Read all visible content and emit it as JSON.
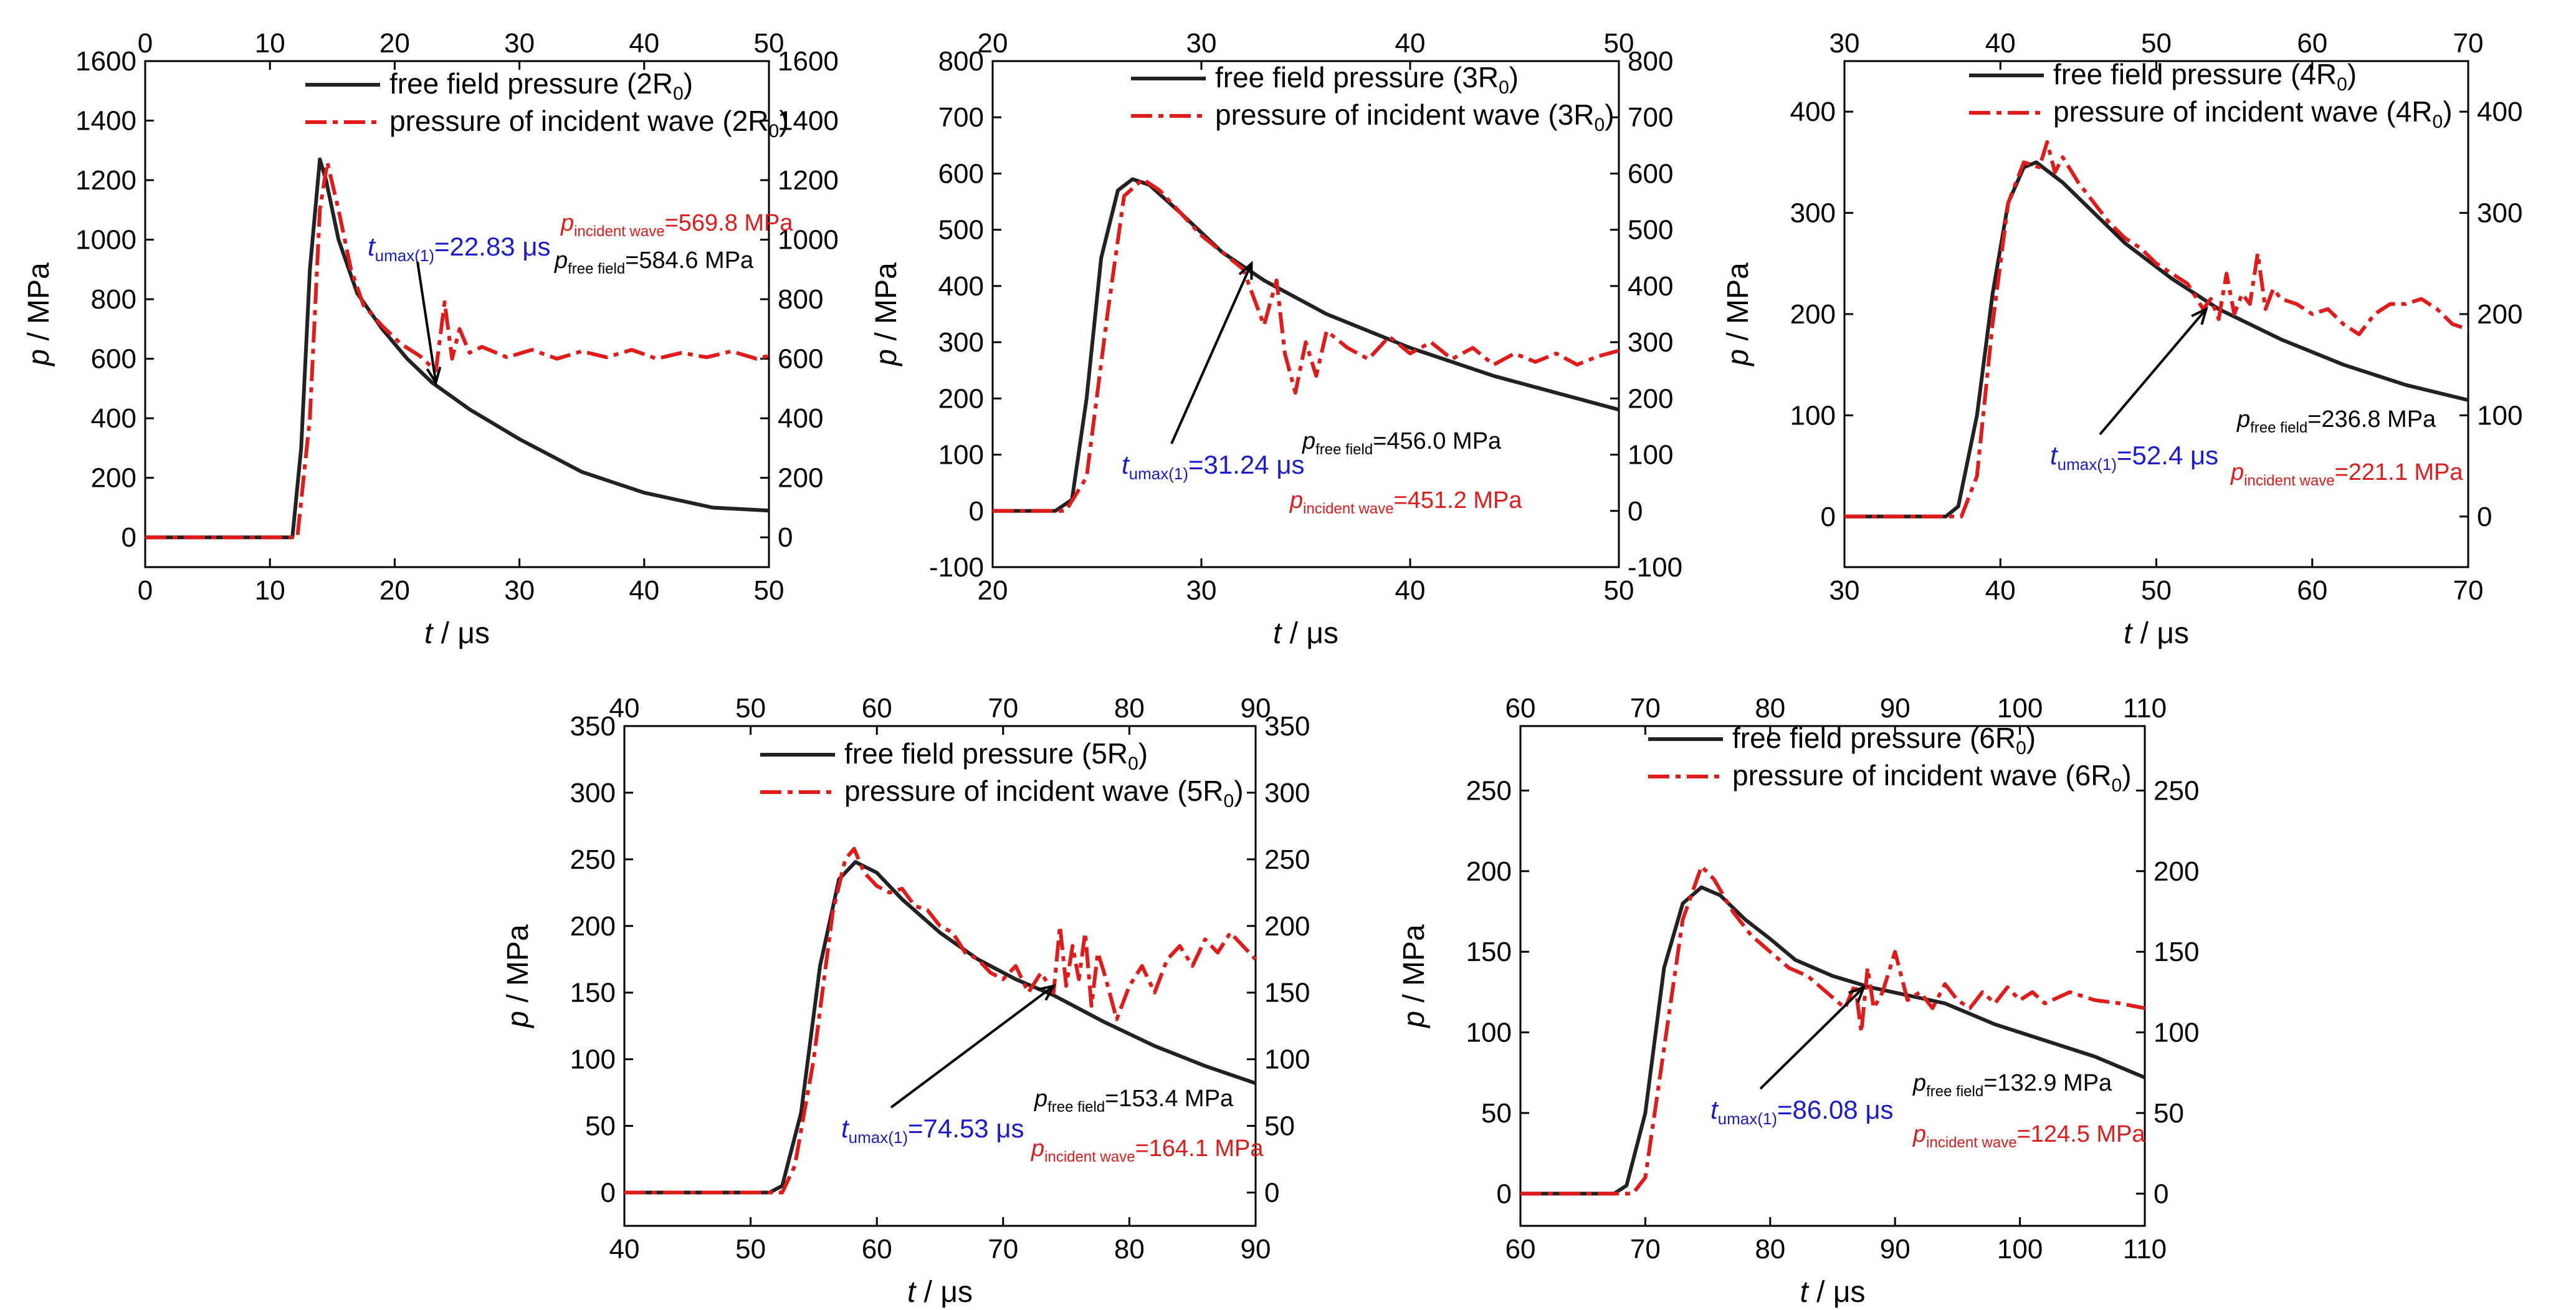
{
  "colors": {
    "free_field": "#222222",
    "incident": "#e11a1a",
    "annot_blue": "#1a1ad0",
    "axis": "#000000"
  },
  "chart_data": [
    {
      "type": "line",
      "xlabel_var": "t",
      "xlabel_unit": "μs",
      "ylabel_var": "p",
      "ylabel_unit": "MPa",
      "xlim": [
        0,
        50
      ],
      "ylim": [
        -100,
        1600
      ],
      "xticks": [
        0,
        10,
        20,
        30,
        40,
        50
      ],
      "yticks_left": [
        0,
        200,
        400,
        600,
        800,
        1000,
        1200,
        1400,
        1600
      ],
      "yticks_right": [
        0,
        200,
        400,
        600,
        800,
        1000,
        1200,
        1400,
        1600
      ],
      "series": [
        {
          "name_main": "free field pressure (2R",
          "name_sub": "0",
          "name_tail": ")",
          "style": "solid",
          "x": [
            0,
            11,
            11.8,
            12.5,
            13.2,
            14,
            14.5,
            15.5,
            17,
            19,
            21,
            23,
            26,
            30,
            35,
            40,
            45.5,
            50
          ],
          "y": [
            0,
            0,
            0,
            300,
            900,
            1270,
            1200,
            1000,
            820,
            700,
            600,
            520,
            430,
            330,
            220,
            150,
            100,
            90
          ]
        },
        {
          "name_main": "pressure of incident wave (2R",
          "name_sub": "0",
          "name_tail": ")",
          "style": "dashdot",
          "x": [
            0,
            12.2,
            13.2,
            14,
            14.6,
            15.5,
            16.5,
            17.5,
            19,
            20.5,
            22,
            23.3,
            24,
            24.6,
            25.2,
            26,
            27,
            29,
            31,
            33,
            35,
            37,
            39,
            41,
            43,
            45,
            47,
            49,
            50
          ],
          "y": [
            0,
            0,
            400,
            1100,
            1260,
            1100,
            900,
            780,
            710,
            650,
            610,
            560,
            790,
            600,
            700,
            620,
            640,
            605,
            630,
            600,
            625,
            605,
            630,
            600,
            620,
            605,
            625,
            600,
            610
          ]
        }
      ],
      "annotations": {
        "t_main": "t",
        "t_sub": "umax(1)",
        "t_val": "=22.83 μs",
        "pf_main": "p",
        "pf_sub": "free field",
        "pf_val": "=584.6 MPa",
        "pi_main": "p",
        "pi_sub": "incident wave",
        "pi_val": "=569.8 MPa",
        "arrow_to": [
          23.3,
          520
        ]
      }
    },
    {
      "type": "line",
      "xlabel_var": "t",
      "xlabel_unit": "μs",
      "ylabel_var": "p",
      "ylabel_unit": "MPa",
      "xlim": [
        20,
        50
      ],
      "ylim": [
        -100,
        800
      ],
      "xticks": [
        20,
        30,
        40,
        50
      ],
      "yticks_left": [
        -100,
        0,
        100,
        200,
        300,
        400,
        500,
        600,
        700,
        800
      ],
      "yticks_right": [
        -100,
        0,
        100,
        200,
        300,
        400,
        500,
        600,
        700,
        800
      ],
      "series": [
        {
          "name_main": "free field pressure (3R",
          "name_sub": "0",
          "name_tail": ")",
          "style": "solid",
          "x": [
            20,
            23,
            23.8,
            24.5,
            25.2,
            26,
            26.7,
            27.5,
            29,
            31,
            33,
            36,
            40,
            44,
            47,
            50
          ],
          "y": [
            0,
            0,
            20,
            200,
            450,
            570,
            590,
            580,
            530,
            460,
            410,
            350,
            290,
            240,
            210,
            180
          ]
        },
        {
          "name_main": "pressure of incident wave (3R",
          "name_sub": "0",
          "name_tail": ")",
          "style": "dashdot",
          "x": [
            20,
            23.5,
            24.5,
            25.5,
            26.3,
            27.2,
            28,
            29,
            30,
            31,
            32,
            32.5,
            33,
            33.6,
            34,
            34.5,
            35,
            35.5,
            36,
            37,
            38,
            39,
            40,
            41,
            42,
            43,
            44,
            45,
            46,
            47,
            48,
            49,
            50
          ],
          "y": [
            0,
            0,
            60,
            350,
            560,
            590,
            570,
            530,
            490,
            460,
            430,
            380,
            330,
            410,
            280,
            210,
            300,
            240,
            320,
            290,
            270,
            310,
            280,
            300,
            270,
            290,
            260,
            280,
            265,
            280,
            260,
            275,
            285
          ]
        }
      ],
      "annotations": {
        "t_main": "t",
        "t_sub": "umax(1)",
        "t_val": "=31.24 μs",
        "pf_main": "p",
        "pf_sub": "free field",
        "pf_val": "=456.0 MPa",
        "pi_main": "p",
        "pi_sub": "incident wave",
        "pi_val": "=451.2 MPa",
        "arrow_to": [
          32.4,
          440
        ]
      }
    },
    {
      "type": "line",
      "xlabel_var": "t",
      "xlabel_unit": "μs",
      "ylabel_var": "p",
      "ylabel_unit": "MPa",
      "xlim": [
        30,
        70
      ],
      "ylim": [
        -50,
        450
      ],
      "xticks": [
        30,
        40,
        50,
        60,
        70
      ],
      "yticks_left": [
        0,
        100,
        200,
        300,
        400
      ],
      "yticks_right": [
        0,
        100,
        200,
        300,
        400
      ],
      "series": [
        {
          "name_main": "free field pressure (4R",
          "name_sub": "0",
          "name_tail": ")",
          "style": "solid",
          "x": [
            30,
            36.5,
            37.3,
            38.5,
            39.5,
            40.5,
            41.5,
            42.3,
            44,
            46,
            48,
            51,
            54,
            58,
            62,
            66,
            70
          ],
          "y": [
            0,
            0,
            10,
            100,
            220,
            310,
            345,
            350,
            330,
            300,
            270,
            235,
            205,
            175,
            150,
            130,
            115
          ]
        },
        {
          "name_main": "pressure of incident wave (4R",
          "name_sub": "0",
          "name_tail": ")",
          "style": "dashdot",
          "x": [
            30,
            37.5,
            38.5,
            39.5,
            40.5,
            41.5,
            42.5,
            43,
            43.5,
            44,
            45,
            46,
            47,
            48,
            49,
            50,
            51,
            52,
            53,
            53.5,
            54,
            54.5,
            55,
            55.5,
            56,
            56.5,
            57,
            57.5,
            58,
            59,
            60,
            61,
            62,
            63,
            64,
            65,
            66,
            67,
            68,
            69,
            70
          ],
          "y": [
            0,
            0,
            40,
            190,
            310,
            350,
            345,
            370,
            340,
            355,
            330,
            310,
            290,
            275,
            265,
            250,
            240,
            230,
            205,
            215,
            195,
            240,
            200,
            220,
            210,
            260,
            205,
            225,
            215,
            210,
            200,
            205,
            190,
            180,
            200,
            210,
            210,
            215,
            205,
            190,
            185
          ]
        }
      ],
      "annotations": {
        "t_main": "t",
        "t_sub": "umax(1)",
        "t_val": "=52.4 μs",
        "pf_main": "p",
        "pf_sub": "free field",
        "pf_val": "=236.8 MPa",
        "pi_main": "p",
        "pi_sub": "incident wave",
        "pi_val": "=221.1 MPa",
        "arrow_to": [
          53.2,
          205
        ]
      }
    },
    {
      "type": "line",
      "xlabel_var": "t",
      "xlabel_unit": "μs",
      "ylabel_var": "p",
      "ylabel_unit": "MPa",
      "xlim": [
        40,
        90
      ],
      "ylim": [
        -25,
        350
      ],
      "xticks": [
        40,
        50,
        60,
        70,
        80,
        90
      ],
      "yticks_left": [
        0,
        50,
        100,
        150,
        200,
        250,
        300,
        350
      ],
      "yticks_right": [
        0,
        50,
        100,
        150,
        200,
        250,
        300,
        350
      ],
      "series": [
        {
          "name_main": "free field pressure (5R",
          "name_sub": "0",
          "name_tail": ")",
          "style": "solid",
          "x": [
            40,
            51.5,
            52.5,
            54,
            55.5,
            57,
            58.3,
            60,
            62,
            65,
            68,
            71,
            74,
            78,
            82,
            86,
            90
          ],
          "y": [
            0,
            0,
            5,
            60,
            170,
            235,
            248,
            240,
            220,
            195,
            175,
            160,
            148,
            128,
            110,
            95,
            82
          ]
        },
        {
          "name_main": "pressure of incident wave (5R",
          "name_sub": "0",
          "name_tail": ")",
          "style": "dashdot",
          "x": [
            40,
            52.5,
            53.5,
            55,
            56.5,
            57.5,
            58.2,
            59,
            60,
            61,
            62,
            63,
            64,
            65,
            66,
            67,
            68,
            69,
            70,
            71,
            72,
            73,
            74,
            74.5,
            75,
            75.5,
            76,
            76.5,
            77,
            77.5,
            78,
            79,
            80,
            81,
            82,
            83,
            84,
            85,
            86,
            87,
            88,
            89,
            90
          ],
          "y": [
            0,
            0,
            20,
            100,
            210,
            250,
            258,
            240,
            230,
            225,
            228,
            215,
            212,
            200,
            195,
            180,
            175,
            165,
            160,
            170,
            150,
            165,
            150,
            200,
            155,
            185,
            160,
            195,
            140,
            180,
            165,
            130,
            155,
            170,
            150,
            175,
            185,
            170,
            190,
            180,
            195,
            185,
            175
          ]
        }
      ],
      "annotations": {
        "t_main": "t",
        "t_sub": "umax(1)",
        "t_val": "=74.53 μs",
        "pf_main": "p",
        "pf_sub": "free field",
        "pf_val": "=153.4 MPa",
        "pi_main": "p",
        "pi_sub": "incident wave",
        "pi_val": "=164.1 MPa",
        "arrow_to": [
          74,
          155
        ]
      }
    },
    {
      "type": "line",
      "xlabel_var": "t",
      "xlabel_unit": "μs",
      "ylabel_var": "p",
      "ylabel_unit": "MPa",
      "xlim": [
        60,
        110
      ],
      "ylim": [
        -20,
        290
      ],
      "xticks": [
        60,
        70,
        80,
        90,
        100,
        110
      ],
      "yticks_left": [
        0,
        50,
        100,
        150,
        200,
        250
      ],
      "yticks_right": [
        0,
        50,
        100,
        150,
        200,
        250
      ],
      "series": [
        {
          "name_main": "free field pressure (6R",
          "name_sub": "0",
          "name_tail": ")",
          "style": "solid",
          "x": [
            60,
            67.5,
            68.5,
            70,
            71.5,
            73,
            74.5,
            76,
            78,
            80,
            82,
            85,
            88,
            91,
            94,
            98,
            102,
            106,
            110
          ],
          "y": [
            0,
            0,
            5,
            50,
            140,
            180,
            190,
            185,
            170,
            158,
            145,
            135,
            128,
            123,
            118,
            105,
            95,
            85,
            72
          ]
        },
        {
          "name_main": "pressure of incident wave (6R",
          "name_sub": "0",
          "name_tail": ")",
          "style": "dashdot",
          "x": [
            60,
            69,
            70,
            71.5,
            73,
            74.5,
            75.5,
            77,
            78.5,
            80,
            81.5,
            83,
            84.5,
            86,
            86.8,
            87.3,
            87.8,
            88.3,
            89,
            90,
            91,
            92,
            93,
            94,
            95,
            96,
            97,
            98,
            99,
            100,
            101,
            102,
            104,
            106,
            108,
            110
          ],
          "y": [
            0,
            0,
            10,
            90,
            170,
            203,
            195,
            175,
            160,
            150,
            140,
            135,
            125,
            115,
            130,
            100,
            140,
            115,
            125,
            150,
            120,
            125,
            115,
            130,
            120,
            115,
            125,
            118,
            128,
            120,
            125,
            118,
            125,
            120,
            118,
            115
          ]
        }
      ],
      "annotations": {
        "t_main": "t",
        "t_sub": "umax(1)",
        "t_val": "=86.08 μs",
        "pf_main": "p",
        "pf_sub": "free field",
        "pf_val": "=132.9 MPa",
        "pi_main": "p",
        "pi_sub": "incident wave",
        "pi_val": "=124.5 MPa",
        "arrow_to": [
          87.5,
          128
        ]
      }
    }
  ]
}
